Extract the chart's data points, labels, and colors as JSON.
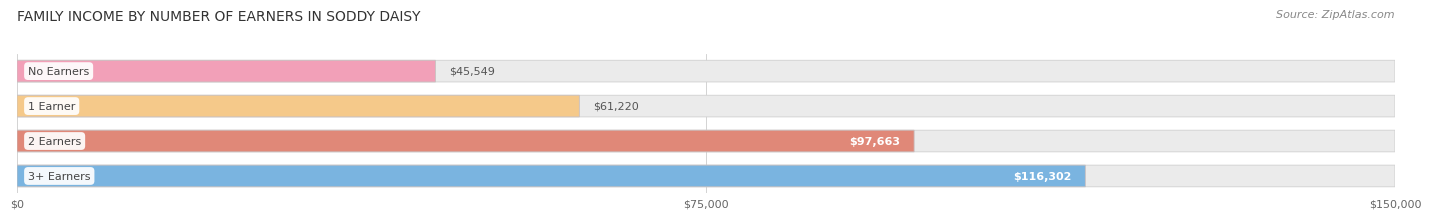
{
  "title": "FAMILY INCOME BY NUMBER OF EARNERS IN SODDY DAISY",
  "source": "Source: ZipAtlas.com",
  "categories": [
    "No Earners",
    "1 Earner",
    "2 Earners",
    "3+ Earners"
  ],
  "values": [
    45549,
    61220,
    97663,
    116302
  ],
  "labels": [
    "$45,549",
    "$61,220",
    "$97,663",
    "$116,302"
  ],
  "bar_colors": [
    "#f2a0b8",
    "#f5c98a",
    "#e08878",
    "#7ab4e0"
  ],
  "label_inside": [
    false,
    false,
    true,
    true
  ],
  "background_color": "#ffffff",
  "bar_bg_color": "#ebebeb",
  "xlim": [
    0,
    150000
  ],
  "xticks": [
    0,
    75000,
    150000
  ],
  "xticklabels": [
    "$0",
    "$75,000",
    "$150,000"
  ],
  "title_fontsize": 10,
  "source_fontsize": 8,
  "label_fontsize": 8,
  "category_fontsize": 8,
  "tick_fontsize": 8
}
